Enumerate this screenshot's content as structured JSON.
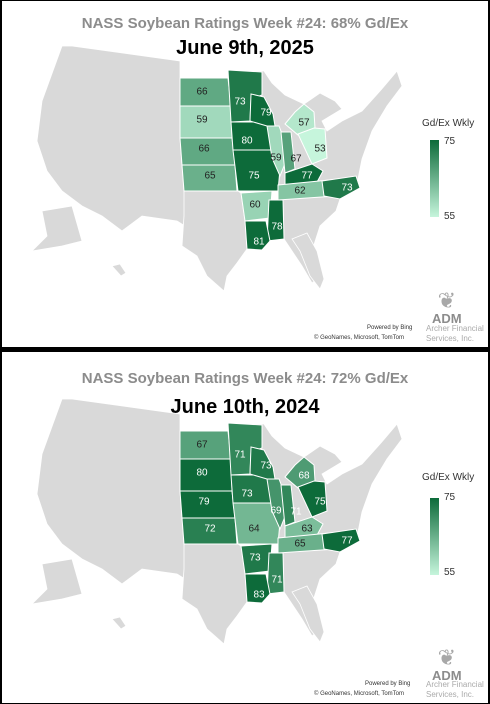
{
  "panels": [
    {
      "title": "NASS Soybean Ratings Week #24: 68% Gd/Ex",
      "date": "June 9th, 2025",
      "legend": {
        "title": "Gd/Ex Wkly",
        "max": "75",
        "min": "55"
      },
      "logo": "ADM",
      "archer": "Archer Financial Services, Inc.",
      "credit_top": "Powered by Bing",
      "credit_bottom": "© GeoNames, Microsoft, TomTom",
      "states": [
        {
          "state": "ND",
          "value": 66
        },
        {
          "state": "SD",
          "value": 59
        },
        {
          "state": "NE",
          "value": 66
        },
        {
          "state": "KS",
          "value": 65
        },
        {
          "state": "MN",
          "value": 73
        },
        {
          "state": "IA",
          "value": 80
        },
        {
          "state": "MO",
          "value": 75
        },
        {
          "state": "WI",
          "value": 79
        },
        {
          "state": "IL",
          "value": 59
        },
        {
          "state": "IN",
          "value": 67
        },
        {
          "state": "MI",
          "value": 57
        },
        {
          "state": "OH",
          "value": 53
        },
        {
          "state": "KY",
          "value": 77
        },
        {
          "state": "TN",
          "value": 62
        },
        {
          "state": "NC",
          "value": 73
        },
        {
          "state": "AR",
          "value": 60
        },
        {
          "state": "MS",
          "value": 78
        },
        {
          "state": "LA",
          "value": 81
        }
      ]
    },
    {
      "title": "NASS Soybean Ratings Week #24: 72% Gd/Ex",
      "date": "June 10th, 2024",
      "legend": {
        "title": "Gd/Ex Wkly",
        "max": "75",
        "min": "55"
      },
      "logo": "ADM",
      "archer": "Archer Financial Services, Inc.",
      "credit_top": "Powered by Bing",
      "credit_bottom": "© GeoNames, Microsoft, TomTom",
      "states": [
        {
          "state": "ND",
          "value": 67
        },
        {
          "state": "SD",
          "value": 80
        },
        {
          "state": "NE",
          "value": 79
        },
        {
          "state": "KS",
          "value": 72
        },
        {
          "state": "MN",
          "value": 71
        },
        {
          "state": "IA",
          "value": 73
        },
        {
          "state": "MO",
          "value": 64
        },
        {
          "state": "WI",
          "value": 73
        },
        {
          "state": "IL",
          "value": 69
        },
        {
          "state": "IN",
          "value": 71
        },
        {
          "state": "MI",
          "value": 68
        },
        {
          "state": "OH",
          "value": 75
        },
        {
          "state": "KY",
          "value": 63
        },
        {
          "state": "TN",
          "value": 65
        },
        {
          "state": "NC",
          "value": 77
        },
        {
          "state": "AR",
          "value": 73
        },
        {
          "state": "MS",
          "value": 71
        },
        {
          "state": "LA",
          "value": 83
        }
      ]
    }
  ],
  "colors": {
    "low": "#c6f5dc",
    "high": "#0d6b3a",
    "land": "#d9d9d9",
    "border": "#ffffff"
  }
}
